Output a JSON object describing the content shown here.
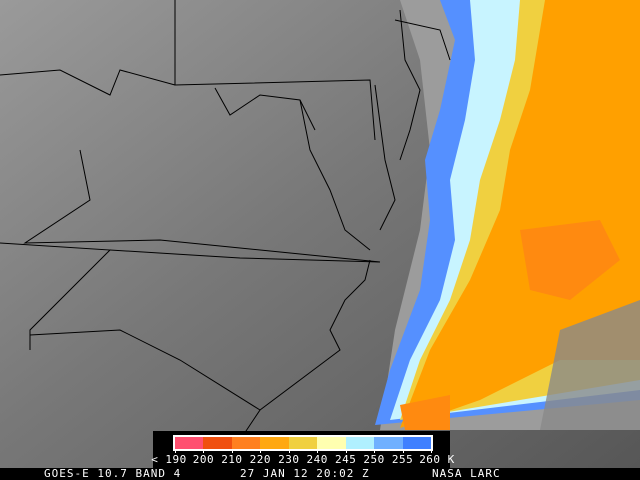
{
  "caption": {
    "satellite": "GOES-E 10.7 BAND 4",
    "datetime": "27 JAN 12 20:02 Z",
    "credit": "NASA LARC"
  },
  "legend": {
    "colors": [
      "#ff5070",
      "#f05010",
      "#ff8020",
      "#ffa810",
      "#f0d040",
      "#ffffb0",
      "#b0f0ff",
      "#70b0ff",
      "#4080ff"
    ],
    "labels": [
      "< 190",
      "200",
      "210",
      "220",
      "230",
      "240",
      "245",
      "250",
      "255",
      "260 K"
    ]
  },
  "image_colors": {
    "clear_ground": "#6e6e6e",
    "cold_cloud": "#ffa000",
    "border_lines": "#000000"
  }
}
